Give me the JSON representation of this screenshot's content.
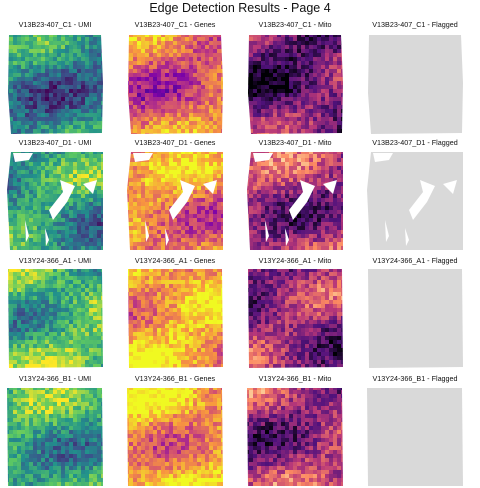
{
  "page": {
    "title": "Edge Detection Results - Page 4"
  },
  "chart_data": {
    "type": "heatmap",
    "layout": "4x4 small multiples",
    "palettes": {
      "viridis": [
        "#440154",
        "#3b528b",
        "#21918c",
        "#5ec962",
        "#fde725"
      ],
      "plasma": [
        "#0d0887",
        "#7e03a8",
        "#cc4778",
        "#f89540",
        "#f0f921"
      ],
      "magma": [
        "#000004",
        "#51127c",
        "#b73779",
        "#fc8961",
        "#fcfdbf"
      ],
      "flagged": [
        "#d9d9d9"
      ]
    },
    "panels": [
      {
        "title": "V13B23-407_C1 - UMI",
        "sample": "V13B23-407_C1",
        "metric": "UMI",
        "palette": "viridis",
        "mean_level": 0.45,
        "shape": "c1"
      },
      {
        "title": "V13B23-407_C1 - Genes",
        "sample": "V13B23-407_C1",
        "metric": "Genes",
        "palette": "plasma",
        "mean_level": 0.6,
        "shape": "c1"
      },
      {
        "title": "V13B23-407_C1 - Mito",
        "sample": "V13B23-407_C1",
        "metric": "Mito",
        "palette": "magma",
        "mean_level": 0.3,
        "shape": "c1"
      },
      {
        "title": "V13B23-407_C1 - Flagged",
        "sample": "V13B23-407_C1",
        "metric": "Flagged",
        "palette": "flagged",
        "mean_level": 0,
        "shape": "c1"
      },
      {
        "title": "V13B23-407_D1 - UMI",
        "sample": "V13B23-407_D1",
        "metric": "UMI",
        "palette": "viridis",
        "mean_level": 0.55,
        "shape": "d1"
      },
      {
        "title": "V13B23-407_D1 - Genes",
        "sample": "V13B23-407_D1",
        "metric": "Genes",
        "palette": "plasma",
        "mean_level": 0.7,
        "shape": "d1"
      },
      {
        "title": "V13B23-407_D1 - Mito",
        "sample": "V13B23-407_D1",
        "metric": "Mito",
        "palette": "magma",
        "mean_level": 0.45,
        "shape": "d1"
      },
      {
        "title": "V13B23-407_D1 - Flagged",
        "sample": "V13B23-407_D1",
        "metric": "Flagged",
        "palette": "flagged",
        "mean_level": 0,
        "shape": "d1"
      },
      {
        "title": "V13Y24-366_A1 - UMI",
        "sample": "V13Y24-366_A1",
        "metric": "UMI",
        "palette": "viridis",
        "mean_level": 0.68,
        "shape": "a1"
      },
      {
        "title": "V13Y24-366_A1 - Genes",
        "sample": "V13Y24-366_A1",
        "metric": "Genes",
        "palette": "plasma",
        "mean_level": 0.8,
        "shape": "a1"
      },
      {
        "title": "V13Y24-366_A1 - Mito",
        "sample": "V13Y24-366_A1",
        "metric": "Mito",
        "palette": "magma",
        "mean_level": 0.4,
        "shape": "a1"
      },
      {
        "title": "V13Y24-366_A1 - Flagged",
        "sample": "V13Y24-366_A1",
        "metric": "Flagged",
        "palette": "flagged",
        "mean_level": 0,
        "shape": "a1"
      },
      {
        "title": "V13Y24-366_B1 - UMI",
        "sample": "V13Y24-366_B1",
        "metric": "UMI",
        "palette": "viridis",
        "mean_level": 0.6,
        "shape": "b1"
      },
      {
        "title": "V13Y24-366_B1 - Genes",
        "sample": "V13Y24-366_B1",
        "metric": "Genes",
        "palette": "plasma",
        "mean_level": 0.78,
        "shape": "b1"
      },
      {
        "title": "V13Y24-366_B1 - Mito",
        "sample": "V13Y24-366_B1",
        "metric": "Mito",
        "palette": "magma",
        "mean_level": 0.45,
        "shape": "b1"
      },
      {
        "title": "V13Y24-366_B1 - Flagged",
        "sample": "V13Y24-366_B1",
        "metric": "Flagged",
        "palette": "flagged",
        "mean_level": 0,
        "shape": "b1"
      }
    ]
  }
}
